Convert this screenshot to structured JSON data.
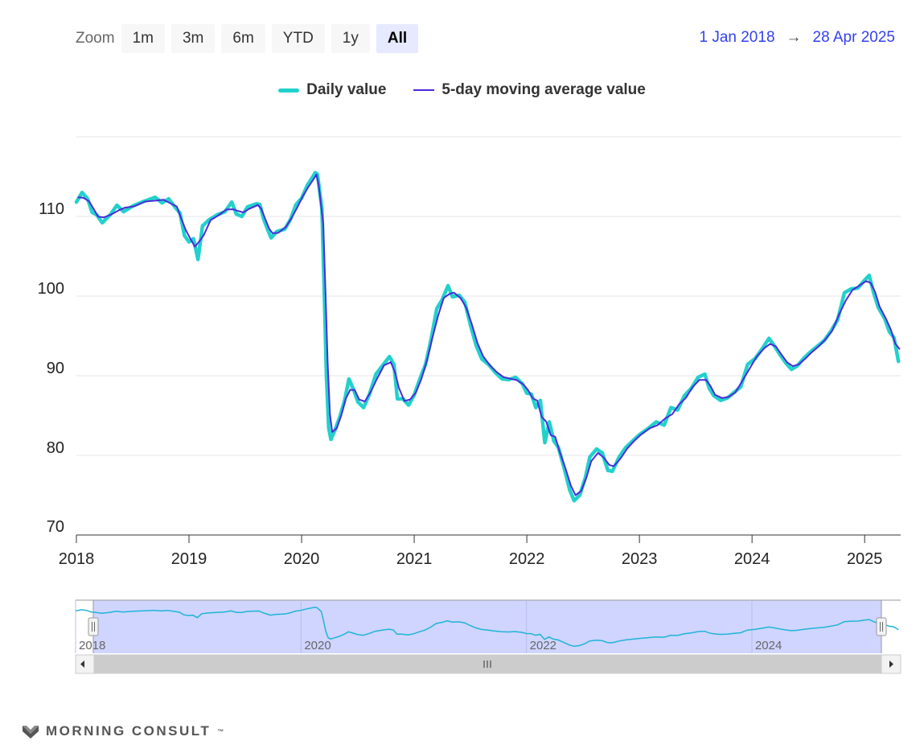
{
  "toolbar": {
    "zoom_label": "Zoom",
    "buttons": [
      "1m",
      "3m",
      "6m",
      "YTD",
      "1y",
      "All"
    ],
    "active": "All"
  },
  "range": {
    "from": "1 Jan 2018",
    "arrow": "→",
    "to": "28 Apr 2025"
  },
  "legend": {
    "daily": {
      "label": "Daily value",
      "color": "#22d1cc"
    },
    "ma": {
      "label": "5-day moving average value",
      "color": "#4b2bd9"
    }
  },
  "navigator": {
    "labels": [
      "2018",
      "2020",
      "2022",
      "2024"
    ],
    "series_color": "#1fb4d9",
    "mask_color": "#ccd3ff",
    "handle_icon": "grip-icon",
    "scroll_icon": "grip-lines-icon"
  },
  "logo": {
    "text": "MORNING CONSULT",
    "mark": "™",
    "icon": "m-logo-icon"
  },
  "chart_data": {
    "type": "line",
    "x_ticks": [
      "2018",
      "2019",
      "2020",
      "2021",
      "2022",
      "2023",
      "2024",
      "2025"
    ],
    "y_ticks": [
      70,
      80,
      90,
      100,
      110
    ],
    "ylim": [
      70,
      120
    ],
    "xlim": [
      2018.0,
      2025.32
    ],
    "grid": true,
    "legend_position": "top-center",
    "series": [
      {
        "name": "Daily value",
        "color": "#22d1cc",
        "points": [
          [
            2018.0,
            111.8
          ],
          [
            2018.05,
            113.0
          ],
          [
            2018.1,
            112.2
          ],
          [
            2018.14,
            110.5
          ],
          [
            2018.18,
            110.2
          ],
          [
            2018.23,
            109.2
          ],
          [
            2018.3,
            110.2
          ],
          [
            2018.36,
            111.4
          ],
          [
            2018.42,
            110.6
          ],
          [
            2018.5,
            111.3
          ],
          [
            2018.6,
            111.9
          ],
          [
            2018.7,
            112.4
          ],
          [
            2018.76,
            111.7
          ],
          [
            2018.82,
            112.2
          ],
          [
            2018.88,
            111.1
          ],
          [
            2018.92,
            110.4
          ],
          [
            2018.96,
            107.6
          ],
          [
            2019.0,
            106.8
          ],
          [
            2019.04,
            107.2
          ],
          [
            2019.08,
            104.6
          ],
          [
            2019.12,
            108.8
          ],
          [
            2019.18,
            109.6
          ],
          [
            2019.25,
            110.2
          ],
          [
            2019.32,
            110.6
          ],
          [
            2019.38,
            111.8
          ],
          [
            2019.42,
            110.3
          ],
          [
            2019.47,
            110.0
          ],
          [
            2019.52,
            111.2
          ],
          [
            2019.6,
            111.6
          ],
          [
            2019.63,
            111.5
          ],
          [
            2019.66,
            109.8
          ],
          [
            2019.7,
            108.3
          ],
          [
            2019.73,
            107.3
          ],
          [
            2019.78,
            108.1
          ],
          [
            2019.85,
            108.4
          ],
          [
            2019.9,
            109.6
          ],
          [
            2019.95,
            111.5
          ],
          [
            2020.0,
            112.3
          ],
          [
            2020.05,
            113.9
          ],
          [
            2020.1,
            115.0
          ],
          [
            2020.12,
            115.5
          ],
          [
            2020.14,
            115.3
          ],
          [
            2020.18,
            111.0
          ],
          [
            2020.2,
            101.0
          ],
          [
            2020.22,
            90.0
          ],
          [
            2020.24,
            83.5
          ],
          [
            2020.26,
            82.0
          ],
          [
            2020.3,
            83.3
          ],
          [
            2020.34,
            84.9
          ],
          [
            2020.38,
            86.8
          ],
          [
            2020.42,
            89.6
          ],
          [
            2020.46,
            88.3
          ],
          [
            2020.5,
            86.7
          ],
          [
            2020.55,
            86.0
          ],
          [
            2020.6,
            87.6
          ],
          [
            2020.66,
            90.2
          ],
          [
            2020.72,
            91.3
          ],
          [
            2020.78,
            92.4
          ],
          [
            2020.82,
            91.4
          ],
          [
            2020.85,
            87.1
          ],
          [
            2020.9,
            87.1
          ],
          [
            2020.95,
            86.3
          ],
          [
            2021.0,
            87.6
          ],
          [
            2021.05,
            89.6
          ],
          [
            2021.1,
            91.4
          ],
          [
            2021.15,
            94.6
          ],
          [
            2021.2,
            98.4
          ],
          [
            2021.25,
            99.6
          ],
          [
            2021.3,
            101.3
          ],
          [
            2021.34,
            99.9
          ],
          [
            2021.4,
            100.1
          ],
          [
            2021.45,
            99.2
          ],
          [
            2021.5,
            96.3
          ],
          [
            2021.55,
            93.8
          ],
          [
            2021.6,
            92.1
          ],
          [
            2021.66,
            91.4
          ],
          [
            2021.72,
            90.4
          ],
          [
            2021.78,
            89.6
          ],
          [
            2021.84,
            89.5
          ],
          [
            2021.9,
            89.8
          ],
          [
            2021.96,
            89.0
          ],
          [
            2022.0,
            87.8
          ],
          [
            2022.04,
            87.7
          ],
          [
            2022.08,
            86.0
          ],
          [
            2022.12,
            86.9
          ],
          [
            2022.16,
            81.6
          ],
          [
            2022.2,
            84.2
          ],
          [
            2022.24,
            81.8
          ],
          [
            2022.28,
            81.0
          ],
          [
            2022.33,
            78.5
          ],
          [
            2022.38,
            75.7
          ],
          [
            2022.42,
            74.3
          ],
          [
            2022.47,
            75.0
          ],
          [
            2022.52,
            77.2
          ],
          [
            2022.56,
            79.8
          ],
          [
            2022.62,
            80.8
          ],
          [
            2022.67,
            80.3
          ],
          [
            2022.72,
            78.1
          ],
          [
            2022.76,
            78.0
          ],
          [
            2022.82,
            79.8
          ],
          [
            2022.88,
            81.0
          ],
          [
            2022.94,
            81.8
          ],
          [
            2023.0,
            82.6
          ],
          [
            2023.08,
            83.4
          ],
          [
            2023.15,
            84.2
          ],
          [
            2023.22,
            83.8
          ],
          [
            2023.28,
            86.0
          ],
          [
            2023.34,
            85.7
          ],
          [
            2023.4,
            87.5
          ],
          [
            2023.46,
            88.4
          ],
          [
            2023.52,
            89.8
          ],
          [
            2023.58,
            90.2
          ],
          [
            2023.62,
            88.4
          ],
          [
            2023.66,
            87.5
          ],
          [
            2023.72,
            86.9
          ],
          [
            2023.78,
            87.2
          ],
          [
            2023.84,
            87.9
          ],
          [
            2023.9,
            88.6
          ],
          [
            2023.96,
            91.4
          ],
          [
            2024.03,
            92.2
          ],
          [
            2024.1,
            93.6
          ],
          [
            2024.15,
            94.7
          ],
          [
            2024.2,
            93.7
          ],
          [
            2024.25,
            92.6
          ],
          [
            2024.3,
            91.6
          ],
          [
            2024.35,
            90.8
          ],
          [
            2024.4,
            91.2
          ],
          [
            2024.46,
            92.2
          ],
          [
            2024.52,
            93.0
          ],
          [
            2024.58,
            93.7
          ],
          [
            2024.64,
            94.4
          ],
          [
            2024.7,
            95.6
          ],
          [
            2024.76,
            97.0
          ],
          [
            2024.82,
            100.4
          ],
          [
            2024.88,
            100.9
          ],
          [
            2024.94,
            101.0
          ],
          [
            2025.0,
            102.0
          ],
          [
            2025.04,
            102.6
          ],
          [
            2025.08,
            100.4
          ],
          [
            2025.12,
            98.6
          ],
          [
            2025.18,
            97.1
          ],
          [
            2025.22,
            95.5
          ],
          [
            2025.26,
            94.8
          ],
          [
            2025.3,
            91.8
          ]
        ]
      },
      {
        "name": "5-day moving average value",
        "color": "#4b2bd9",
        "offset": 0.012
      }
    ]
  }
}
